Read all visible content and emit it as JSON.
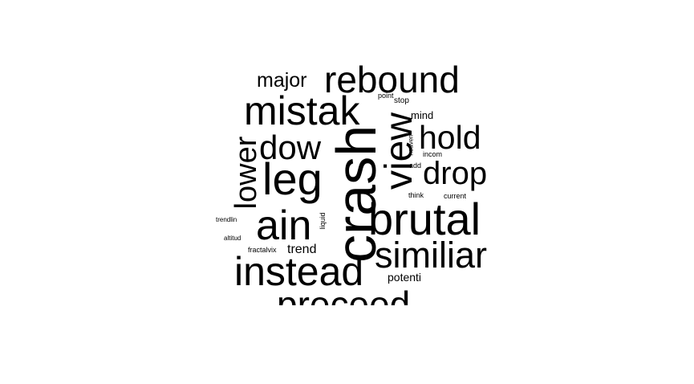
{
  "colors": {
    "text": "#000000",
    "background": "#ffffff"
  },
  "words": {
    "rebound": "rebound",
    "major": "major",
    "mistak": "mistak",
    "point": "point",
    "stop": "stop",
    "mind": "mind",
    "view": "view",
    "crash": "crash",
    "hold": "hold",
    "dow": "dow",
    "lower": "lower",
    "heaven": "heaven",
    "incom": "incom",
    "leg": "leg",
    "add": "add",
    "drop": "drop",
    "think": "think",
    "current": "current",
    "brutal": "brutal",
    "ain": "ain",
    "liquid": "liquid",
    "trendlin": "trendlin",
    "altitud": "altitud",
    "fractalvix": "fractalvix",
    "trend": "trend",
    "similiar": "similiar",
    "instead": "instead",
    "potenti": "potenti",
    "preceed": "preceed"
  }
}
